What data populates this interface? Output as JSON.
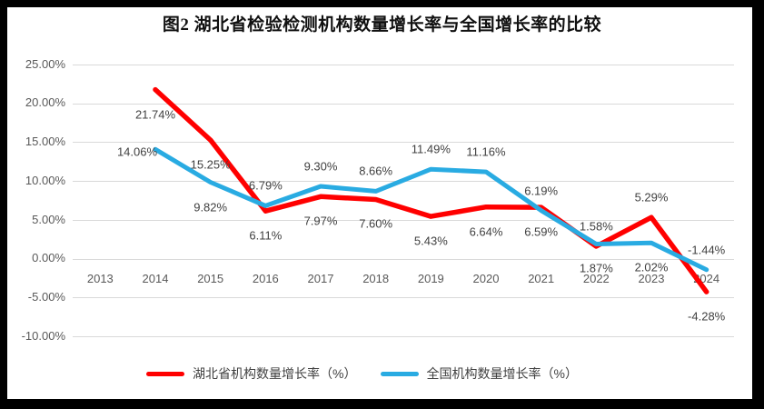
{
  "title": "图2 湖北省检验检测机构数量增长率与全国增长率的比较",
  "chart_data": {
    "type": "line",
    "categories": [
      "2013",
      "2014",
      "2015",
      "2016",
      "2017",
      "2018",
      "2019",
      "2020",
      "2021",
      "2022",
      "2023",
      "2024"
    ],
    "series": [
      {
        "name": "湖北省机构数量增长率（%）",
        "color": "#FF0000",
        "values": [
          null,
          21.74,
          15.25,
          6.11,
          7.97,
          7.6,
          5.43,
          6.64,
          6.59,
          1.58,
          5.29,
          -4.28
        ],
        "labels": [
          null,
          "21.74%",
          "15.25%",
          "6.11%",
          "7.97%",
          "7.60%",
          "5.43%",
          "6.64%",
          "6.59%",
          "1.58%",
          "5.29%",
          "-4.28%"
        ],
        "label_side": [
          null,
          "below",
          "below",
          "below",
          "below",
          "below",
          "below",
          "below",
          "below",
          "above",
          "above",
          "below"
        ]
      },
      {
        "name": "全国机构数量增长率（%）",
        "color": "#29ABE2",
        "values": [
          null,
          14.06,
          9.82,
          6.79,
          9.3,
          8.66,
          11.49,
          11.16,
          6.19,
          1.87,
          2.02,
          -1.44
        ],
        "labels": [
          null,
          "14.06%",
          "9.82%",
          "6.79%",
          "9.30%",
          "8.66%",
          "11.49%",
          "11.16%",
          "6.19%",
          "1.87%",
          "2.02%",
          "-1.44%"
        ],
        "label_side": [
          null,
          "left",
          "below",
          "above",
          "above",
          "above",
          "above",
          "above",
          "above",
          "below",
          "below",
          "above"
        ]
      }
    ],
    "ylim": [
      -10,
      25
    ],
    "ytick_step": 5,
    "ytick_labels": [
      "25.00%",
      "20.00%",
      "15.00%",
      "10.00%",
      "5.00%",
      "0.00%",
      "-5.00%",
      "-10.00%"
    ],
    "grid": true,
    "legend_position": "bottom"
  },
  "colors": {
    "frame": "#000000",
    "chart_background": "#FFFFFF",
    "gridline": "#D9D9D9",
    "axis_text": "#595959",
    "data_label_text": "#404040"
  }
}
